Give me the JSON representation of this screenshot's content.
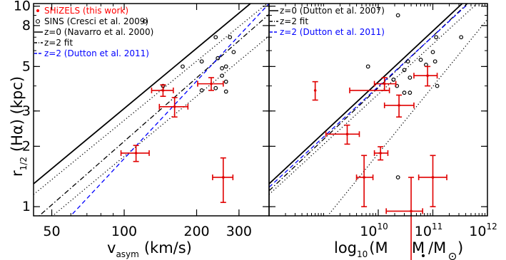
{
  "chart_data": [
    {
      "type": "scatter",
      "panel": "left",
      "xscale": "log",
      "yscale": "log",
      "xlim": [
        42,
        400
      ],
      "ylim": [
        0.9,
        10.3
      ],
      "xlabel": "v",
      "xlabel_sub": "asym",
      "xlabel_unit": "(km/s)",
      "ylabel_main": "r",
      "ylabel_sub": "1/2",
      "ylabel_unit": "(Hα)  (kpc)",
      "x_ticks": [
        {
          "v": 50,
          "label": "50"
        },
        {
          "v": 100,
          "label": "100"
        },
        {
          "v": 200,
          "label": "200"
        },
        {
          "v": 300,
          "label": "300"
        }
      ],
      "y_ticks": [
        {
          "v": 1,
          "label": "1"
        },
        {
          "v": 2,
          "label": "2"
        },
        {
          "v": 3,
          "label": "3"
        },
        {
          "v": 5,
          "label": "5"
        },
        {
          "v": 8,
          "label": "8"
        },
        {
          "v": 10,
          "label": "10"
        }
      ],
      "legend": [
        {
          "text": "SHiZELS (this work)",
          "marker": "dot",
          "color": "#ff0000"
        },
        {
          "text": "SINS (Cresci et al. 2009)",
          "marker": "circle",
          "color": "#000000"
        },
        {
          "text": "z=0 (Navarro et al. 2000)",
          "marker": "solid",
          "color": "#000000"
        },
        {
          "text": "z=2 fit",
          "marker": "dashdot",
          "color": "#000000"
        },
        {
          "text": "z=2 (Dutton et al. 2011)",
          "marker": "dashed",
          "color": "#0000ff"
        }
      ],
      "series": [
        {
          "name": "SHiZELS (this work)",
          "kind": "errorbar",
          "color": "#e00000",
          "points": [
            {
              "x": 145,
              "y": 3.8,
              "xerr": 15,
              "yerr": 0.25
            },
            {
              "x": 162,
              "y": 3.15,
              "xerr": 22,
              "yerr": 0.35
            },
            {
              "x": 112,
              "y": 1.85,
              "xerr": 15,
              "yerr": 0.17
            },
            {
              "x": 230,
              "y": 4.1,
              "xerr": 28,
              "yerr": 0.3
            },
            {
              "x": 258,
              "y": 1.4,
              "xerr": 25,
              "yerr": 0.35
            }
          ]
        },
        {
          "name": "SINS (Cresci et al. 2009)",
          "kind": "circle",
          "color": "#000000",
          "points": [
            {
              "x": 145,
              "y": 4.0
            },
            {
              "x": 175,
              "y": 5.0
            },
            {
              "x": 210,
              "y": 5.3
            },
            {
              "x": 240,
              "y": 7.0
            },
            {
              "x": 275,
              "y": 7.0
            },
            {
              "x": 245,
              "y": 5.5
            },
            {
              "x": 255,
              "y": 4.9
            },
            {
              "x": 255,
              "y": 4.5
            },
            {
              "x": 265,
              "y": 5.0
            },
            {
              "x": 285,
              "y": 5.9
            },
            {
              "x": 210,
              "y": 3.8
            },
            {
              "x": 265,
              "y": 4.2
            },
            {
              "x": 240,
              "y": 3.9
            },
            {
              "x": 265,
              "y": 3.75
            }
          ]
        },
        {
          "name": "z=0 (Navarro et al. 2000)",
          "kind": "line",
          "style": "solid",
          "color": "#000000",
          "x": [
            42,
            400
          ],
          "y": [
            1.3,
            12.3
          ]
        },
        {
          "name": "",
          "kind": "line",
          "style": "dotted",
          "color": "#000000",
          "x": [
            42,
            400
          ],
          "y": [
            1.15,
            10.5
          ]
        },
        {
          "name": "",
          "kind": "line",
          "style": "dotted",
          "color": "#000000",
          "x": [
            42,
            400
          ],
          "y": [
            0.75,
            7.1
          ]
        },
        {
          "name": "z=2 fit",
          "kind": "line",
          "style": "dashdot",
          "color": "#000000",
          "x": [
            42,
            400
          ],
          "y": [
            0.85,
            9.1
          ]
        },
        {
          "name": "z=2 (Dutton et al. 2011)",
          "kind": "line",
          "style": "dashed",
          "color": "#0000ff",
          "x": [
            42,
            400
          ],
          "y": [
            0.57,
            10.3
          ]
        }
      ]
    },
    {
      "type": "scatter",
      "panel": "right",
      "xscale": "log",
      "yscale": "log",
      "xlim": [
        100000000.0,
        1000000000000.0
      ],
      "ylim": [
        0.9,
        10.3
      ],
      "xlabel": "log",
      "xlabel_sub": "10",
      "xlabel_unit": "(M",
      "x_ticks": [
        {
          "v": 10000000000.0,
          "base": "10",
          "exp": "10"
        },
        {
          "v": 100000000000.0,
          "base": "10",
          "exp": "11"
        },
        {
          "v": 1000000000000.0,
          "base": "10",
          "exp": "12"
        }
      ],
      "legend": [
        {
          "text": "z=0 (Dutton et al. 2007)",
          "marker": "solid",
          "color": "#000000"
        },
        {
          "text": "z=2 fit",
          "marker": "dashdot",
          "color": "#000000"
        },
        {
          "text": "z=2 (Dutton et al. 2011)",
          "marker": "dashed",
          "color": "#0000ff"
        }
      ],
      "series": [
        {
          "name": "SHiZELS (this work)",
          "kind": "errorbar",
          "color": "#e00000",
          "points": [
            {
              "x": 700000000.0,
              "y": 3.8,
              "xlo": 3000000000.0,
              "xhi": 16000000000.0,
              "yerr": 0.4
            },
            {
              "x": 13000000000.0,
              "y": 4.1,
              "xlo": 8500000000.0,
              "xhi": 21000000000.0,
              "yerr": 0.3
            },
            {
              "x": 24000000000.0,
              "y": 3.2,
              "xlo": 13000000000.0,
              "xhi": 45000000000.0,
              "yerr": 0.4
            },
            {
              "x": 80000000000.0,
              "y": 4.5,
              "xlo": 45000000000.0,
              "xhi": 120000000000.0,
              "yerr": 0.5
            },
            {
              "x": 2700000000.0,
              "y": 2.3,
              "xlo": 1100000000.0,
              "xhi": 4500000000.0,
              "yerr": 0.25
            },
            {
              "x": 11000000000.0,
              "y": 1.85,
              "xlo": 8500000000.0,
              "xhi": 15000000000.0,
              "yerr": 0.14
            },
            {
              "x": 5500000000.0,
              "y": 1.4,
              "xlo": 4000000000.0,
              "xhi": 8000000000.0,
              "yerr": 0.4
            },
            {
              "x": 40000000000.0,
              "y": 0.95,
              "xlo": 14000000000.0,
              "xhi": 65000000000.0,
              "yerr": 0.45
            },
            {
              "x": 100000000000.0,
              "y": 1.4,
              "xlo": 55000000000.0,
              "xhi": 180000000000.0,
              "yerr": 0.4
            }
          ]
        },
        {
          "name": "SINS (Cresci et al. 2009)",
          "kind": "circle",
          "color": "#000000",
          "points": [
            {
              "x": 6500000000.0,
              "y": 5.0
            },
            {
              "x": 23000000000.0,
              "y": 9.0
            },
            {
              "x": 19000000000.0,
              "y": 4.3
            },
            {
              "x": 22000000000.0,
              "y": 4.0
            },
            {
              "x": 30000000000.0,
              "y": 4.8
            },
            {
              "x": 35000000000.0,
              "y": 5.3
            },
            {
              "x": 38000000000.0,
              "y": 4.4
            },
            {
              "x": 30000000000.0,
              "y": 3.7
            },
            {
              "x": 38000000000.0,
              "y": 3.7
            },
            {
              "x": 60000000000.0,
              "y": 5.4
            },
            {
              "x": 75000000000.0,
              "y": 5.1
            },
            {
              "x": 100000000000.0,
              "y": 5.9
            },
            {
              "x": 115000000000.0,
              "y": 7.0
            },
            {
              "x": 110000000000.0,
              "y": 5.3
            },
            {
              "x": 120000000000.0,
              "y": 4.0
            },
            {
              "x": 330000000000.0,
              "y": 7.0
            },
            {
              "x": 23000000000.0,
              "y": 1.4
            }
          ]
        },
        {
          "name": "z=0 (Dutton et al. 2007)",
          "kind": "line",
          "style": "solid",
          "color": "#000000",
          "x": [
            100000000.0,
            1000000000000.0
          ],
          "y": [
            1.3,
            13.5
          ]
        },
        {
          "name": "",
          "kind": "line",
          "style": "dotted",
          "color": "#000000",
          "x": [
            100000000.0,
            1000000000000.0
          ],
          "y": [
            1.15,
            11.5
          ]
        },
        {
          "name": "",
          "kind": "line",
          "style": "dotted",
          "color": "#000000",
          "x": [
            1000000000.0,
            1000000000000.0
          ],
          "y": [
            0.85,
            8.6
          ]
        },
        {
          "name": "z=2 fit",
          "kind": "line",
          "style": "dashdot",
          "color": "#000000",
          "x": [
            100000000.0,
            1000000000000.0
          ],
          "y": [
            1.2,
            12.8
          ]
        },
        {
          "name": "z=2 (Dutton et al. 2011)",
          "kind": "line",
          "style": "dashed",
          "color": "#0000ff",
          "x": [
            100000000.0,
            1000000000000.0
          ],
          "y": [
            1.25,
            12.6
          ]
        }
      ]
    }
  ]
}
